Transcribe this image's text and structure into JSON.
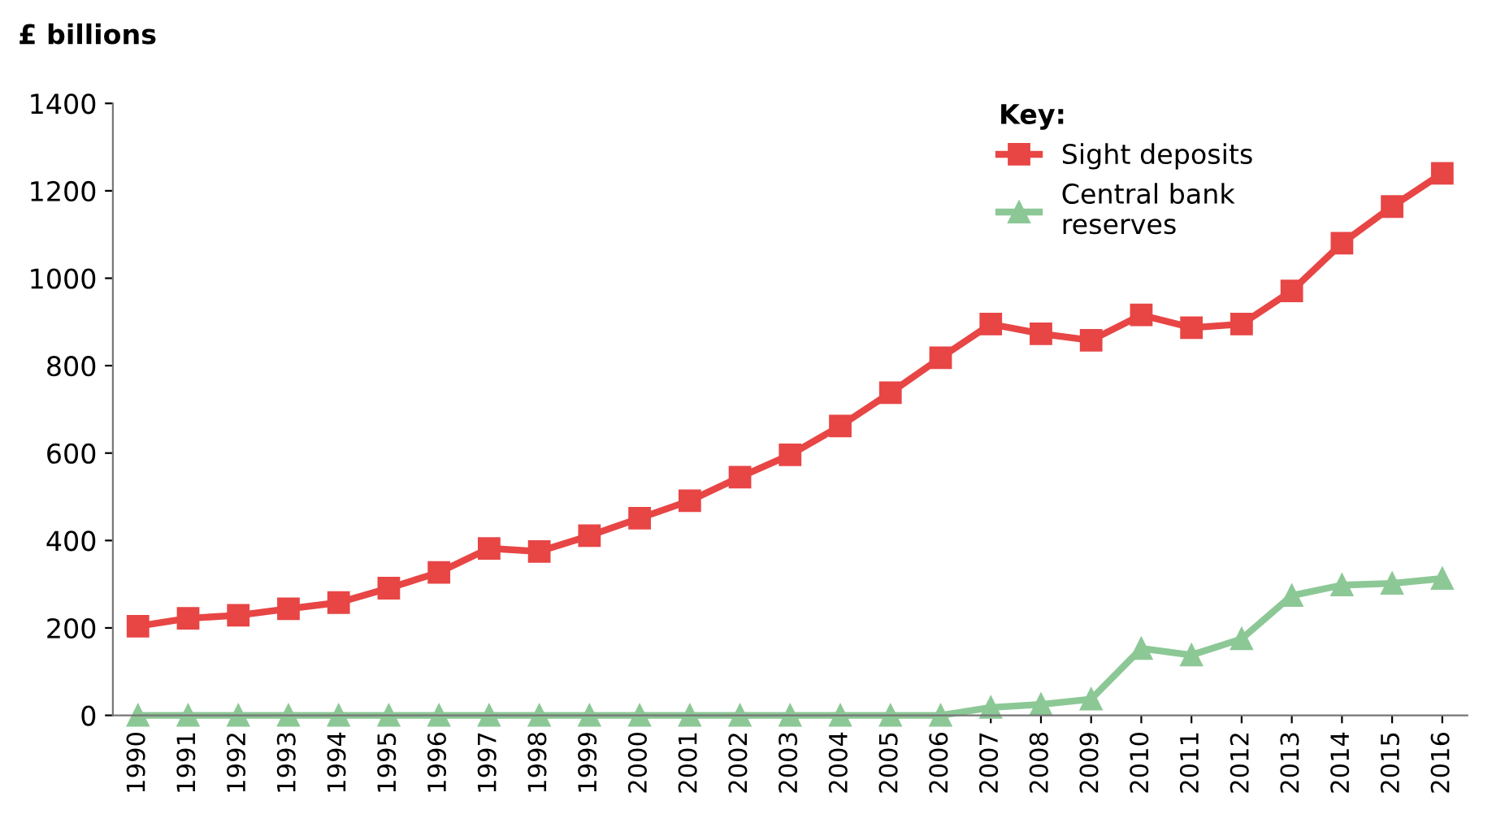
{
  "chart_data": {
    "type": "line",
    "ylabel": "£ billions",
    "legend_title": "Key:",
    "categories": [
      "1990",
      "1991",
      "1992",
      "1993",
      "1994",
      "1995",
      "1996",
      "1997",
      "1998",
      "1999",
      "2000",
      "2001",
      "2002",
      "2003",
      "2004",
      "2005",
      "2006",
      "2007",
      "2008",
      "2009",
      "2010",
      "2011",
      "2012",
      "2013",
      "2014",
      "2015",
      "2016"
    ],
    "series": [
      {
        "name": "Sight deposits",
        "color": "#e84545",
        "marker": "square",
        "values": [
          204,
          222,
          229,
          244,
          258,
          291,
          327,
          382,
          375,
          411,
          451,
          491,
          545,
          596,
          662,
          738,
          818,
          895,
          873,
          858,
          916,
          887,
          895,
          971,
          1080,
          1164,
          1240
        ]
      },
      {
        "name": "Central bank\nreserves",
        "color": "#8cc896",
        "marker": "triangle",
        "values": [
          0,
          0,
          0,
          0,
          0,
          0,
          0,
          0,
          0,
          0,
          0,
          0,
          0,
          0,
          0,
          0,
          0,
          18,
          25,
          37,
          153,
          138,
          175,
          274,
          298,
          302,
          313
        ]
      }
    ],
    "ylim": [
      0,
      1400
    ],
    "yticks": [
      0,
      200,
      400,
      600,
      800,
      1000,
      1200,
      1400
    ],
    "grid": false,
    "legend": "top right",
    "line_style": "solid"
  }
}
